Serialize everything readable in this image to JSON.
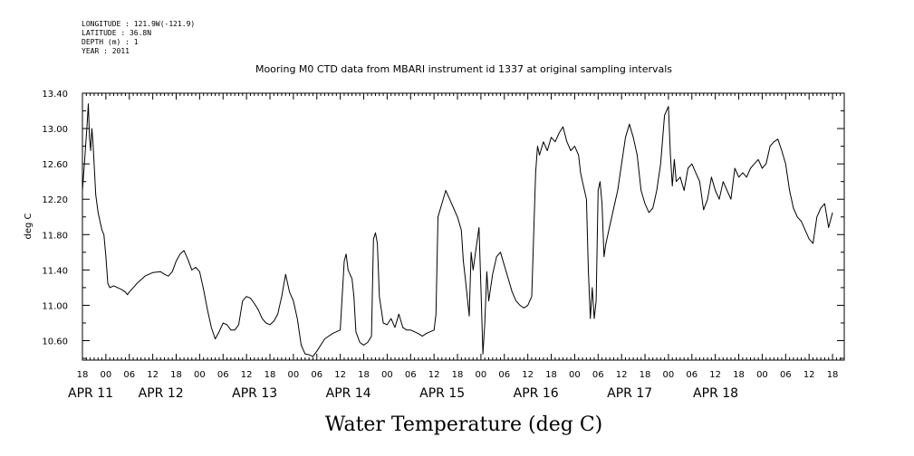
{
  "metadata": {
    "longitude": "LONGITUDE : 121.9W(-121.9)",
    "latitude": "LATITUDE : 36.8N",
    "depth": "DEPTH (m) : 1",
    "year": "YEAR : 2011"
  },
  "chart_data": {
    "type": "line",
    "title": "Mooring M0 CTD data from MBARI instrument id 1337 at original sampling intervals",
    "xlabel": "Water Temperature (deg C)",
    "ylabel": "deg C",
    "xlim": [
      -6,
      189
    ],
    "ylim": [
      10.38,
      13.4
    ],
    "y_tick_labels": [
      "13.40",
      "13.00",
      "12.60",
      "12.20",
      "11.80",
      "11.40",
      "11.00",
      "10.60"
    ],
    "y_tick_values": [
      13.4,
      13.0,
      12.6,
      12.2,
      11.8,
      11.4,
      11.0,
      10.6
    ],
    "x_hour_ticks": [
      {
        "t": -6,
        "label": "18"
      },
      {
        "t": 0,
        "label": "00"
      },
      {
        "t": 6,
        "label": "06"
      },
      {
        "t": 12,
        "label": "12"
      },
      {
        "t": 18,
        "label": "18"
      },
      {
        "t": 24,
        "label": "00"
      },
      {
        "t": 30,
        "label": "06"
      },
      {
        "t": 36,
        "label": "12"
      },
      {
        "t": 42,
        "label": "18"
      },
      {
        "t": 48,
        "label": "00"
      },
      {
        "t": 54,
        "label": "06"
      },
      {
        "t": 60,
        "label": "12"
      },
      {
        "t": 66,
        "label": "18"
      },
      {
        "t": 72,
        "label": "00"
      },
      {
        "t": 78,
        "label": "06"
      },
      {
        "t": 84,
        "label": "12"
      },
      {
        "t": 90,
        "label": "18"
      },
      {
        "t": 96,
        "label": "00"
      },
      {
        "t": 102,
        "label": "06"
      },
      {
        "t": 108,
        "label": "12"
      },
      {
        "t": 114,
        "label": "18"
      },
      {
        "t": 120,
        "label": "00"
      },
      {
        "t": 126,
        "label": "06"
      },
      {
        "t": 132,
        "label": "12"
      },
      {
        "t": 138,
        "label": "18"
      },
      {
        "t": 144,
        "label": "00"
      },
      {
        "t": 150,
        "label": "06"
      },
      {
        "t": 156,
        "label": "12"
      },
      {
        "t": 162,
        "label": "18"
      },
      {
        "t": 168,
        "label": "00"
      },
      {
        "t": 174,
        "label": "06"
      },
      {
        "t": 180,
        "label": "12"
      },
      {
        "t": 186,
        "label": "18"
      }
    ],
    "x_day_labels": [
      {
        "t": -6,
        "label": "APR 11"
      },
      {
        "t": 12,
        "label": "APR 12"
      },
      {
        "t": 36,
        "label": "APR 13"
      },
      {
        "t": 60,
        "label": "APR 14"
      },
      {
        "t": 84,
        "label": "APR 15"
      },
      {
        "t": 108,
        "label": "APR 16"
      },
      {
        "t": 132,
        "label": "APR 17"
      },
      {
        "t": 154,
        "label": "APR 18"
      }
    ],
    "series": [
      {
        "values": [
          [
            -6,
            12.3
          ],
          [
            -5.5,
            12.6
          ],
          [
            -5.2,
            12.8
          ],
          [
            -4.8,
            13.05
          ],
          [
            -4.5,
            13.28
          ],
          [
            -4.2,
            12.9
          ],
          [
            -3.9,
            12.75
          ],
          [
            -3.6,
            13.0
          ],
          [
            -3.3,
            12.85
          ],
          [
            -3.0,
            12.6
          ],
          [
            -2.6,
            12.25
          ],
          [
            -2.0,
            12.05
          ],
          [
            -1.5,
            11.95
          ],
          [
            -1.0,
            11.85
          ],
          [
            -0.5,
            11.8
          ],
          [
            0,
            11.55
          ],
          [
            0.5,
            11.25
          ],
          [
            1,
            11.2
          ],
          [
            2,
            11.22
          ],
          [
            3,
            11.2
          ],
          [
            4,
            11.18
          ],
          [
            5,
            11.15
          ],
          [
            5.5,
            11.12
          ],
          [
            6,
            11.15
          ],
          [
            7,
            11.2
          ],
          [
            8,
            11.25
          ],
          [
            10,
            11.33
          ],
          [
            12,
            11.37
          ],
          [
            14,
            11.38
          ],
          [
            15,
            11.35
          ],
          [
            16,
            11.33
          ],
          [
            17,
            11.38
          ],
          [
            18,
            11.5
          ],
          [
            19,
            11.58
          ],
          [
            20,
            11.62
          ],
          [
            21,
            11.52
          ],
          [
            22,
            11.4
          ],
          [
            23,
            11.43
          ],
          [
            24,
            11.38
          ],
          [
            25,
            11.18
          ],
          [
            26,
            10.95
          ],
          [
            27,
            10.75
          ],
          [
            28,
            10.62
          ],
          [
            29,
            10.7
          ],
          [
            30,
            10.8
          ],
          [
            31,
            10.78
          ],
          [
            32,
            10.72
          ],
          [
            33,
            10.72
          ],
          [
            34,
            10.78
          ],
          [
            35,
            11.05
          ],
          [
            36,
            11.1
          ],
          [
            37,
            11.08
          ],
          [
            38,
            11.02
          ],
          [
            39,
            10.95
          ],
          [
            40,
            10.85
          ],
          [
            41,
            10.8
          ],
          [
            42,
            10.78
          ],
          [
            43,
            10.82
          ],
          [
            44,
            10.9
          ],
          [
            45,
            11.1
          ],
          [
            46,
            11.35
          ],
          [
            47,
            11.15
          ],
          [
            48,
            11.05
          ],
          [
            49,
            10.85
          ],
          [
            50,
            10.55
          ],
          [
            51,
            10.45
          ],
          [
            52,
            10.44
          ],
          [
            53,
            10.42
          ],
          [
            54,
            10.48
          ],
          [
            55,
            10.55
          ],
          [
            56,
            10.62
          ],
          [
            57,
            10.65
          ],
          [
            58,
            10.68
          ],
          [
            59,
            10.7
          ],
          [
            60,
            10.72
          ],
          [
            61,
            11.5
          ],
          [
            61.5,
            11.58
          ],
          [
            62,
            11.4
          ],
          [
            63,
            11.3
          ],
          [
            63.5,
            11.1
          ],
          [
            64,
            10.7
          ],
          [
            65,
            10.58
          ],
          [
            66,
            10.55
          ],
          [
            67,
            10.58
          ],
          [
            68,
            10.65
          ],
          [
            68.5,
            11.75
          ],
          [
            69,
            11.82
          ],
          [
            69.5,
            11.7
          ],
          [
            70,
            11.1
          ],
          [
            71,
            10.8
          ],
          [
            72,
            10.78
          ],
          [
            73,
            10.85
          ],
          [
            74,
            10.75
          ],
          [
            75,
            10.9
          ],
          [
            76,
            10.75
          ],
          [
            77,
            10.72
          ],
          [
            78,
            10.72
          ],
          [
            79,
            10.7
          ],
          [
            80,
            10.68
          ],
          [
            81,
            10.65
          ],
          [
            82,
            10.68
          ],
          [
            83,
            10.7
          ],
          [
            84,
            10.72
          ],
          [
            84.5,
            10.9
          ],
          [
            85,
            12.0
          ],
          [
            86,
            12.15
          ],
          [
            87,
            12.3
          ],
          [
            88,
            12.2
          ],
          [
            89,
            12.1
          ],
          [
            90,
            12.0
          ],
          [
            91,
            11.85
          ],
          [
            91.5,
            11.5
          ],
          [
            92,
            11.3
          ],
          [
            93,
            10.88
          ],
          [
            93.5,
            11.6
          ],
          [
            94,
            11.4
          ],
          [
            95,
            11.72
          ],
          [
            95.5,
            11.88
          ],
          [
            96,
            11.2
          ],
          [
            96.5,
            10.45
          ],
          [
            97,
            10.8
          ],
          [
            97.5,
            11.38
          ],
          [
            98,
            11.05
          ],
          [
            99,
            11.35
          ],
          [
            100,
            11.55
          ],
          [
            101,
            11.6
          ],
          [
            102,
            11.45
          ],
          [
            103,
            11.3
          ],
          [
            104,
            11.15
          ],
          [
            105,
            11.05
          ],
          [
            106,
            11.0
          ],
          [
            107,
            10.97
          ],
          [
            108,
            11.0
          ],
          [
            109,
            11.1
          ],
          [
            110,
            12.5
          ],
          [
            110.5,
            12.8
          ],
          [
            111,
            12.7
          ],
          [
            112,
            12.85
          ],
          [
            113,
            12.75
          ],
          [
            114,
            12.9
          ],
          [
            115,
            12.85
          ],
          [
            116,
            12.95
          ],
          [
            117,
            13.02
          ],
          [
            118,
            12.85
          ],
          [
            119,
            12.75
          ],
          [
            120,
            12.8
          ],
          [
            121,
            12.7
          ],
          [
            121.5,
            12.5
          ],
          [
            122,
            12.4
          ],
          [
            123,
            12.2
          ],
          [
            123.5,
            11.4
          ],
          [
            124,
            10.85
          ],
          [
            124.5,
            11.2
          ],
          [
            125,
            10.85
          ],
          [
            125.5,
            11.05
          ],
          [
            126,
            12.3
          ],
          [
            126.5,
            12.4
          ],
          [
            127,
            12.15
          ],
          [
            127.5,
            11.55
          ],
          [
            128,
            11.7
          ],
          [
            129,
            11.9
          ],
          [
            130,
            12.1
          ],
          [
            131,
            12.3
          ],
          [
            132,
            12.6
          ],
          [
            133,
            12.9
          ],
          [
            134,
            13.05
          ],
          [
            135,
            12.9
          ],
          [
            136,
            12.7
          ],
          [
            137,
            12.3
          ],
          [
            138,
            12.15
          ],
          [
            139,
            12.05
          ],
          [
            140,
            12.1
          ],
          [
            141,
            12.3
          ],
          [
            142,
            12.6
          ],
          [
            143,
            13.15
          ],
          [
            143.5,
            13.2
          ],
          [
            144,
            13.25
          ],
          [
            144.5,
            12.7
          ],
          [
            145,
            12.35
          ],
          [
            145.5,
            12.65
          ],
          [
            146,
            12.4
          ],
          [
            147,
            12.45
          ],
          [
            148,
            12.3
          ],
          [
            149,
            12.55
          ],
          [
            150,
            12.6
          ],
          [
            151,
            12.5
          ],
          [
            152,
            12.4
          ],
          [
            153,
            12.08
          ],
          [
            154,
            12.2
          ],
          [
            155,
            12.45
          ],
          [
            156,
            12.3
          ],
          [
            157,
            12.2
          ],
          [
            158,
            12.4
          ],
          [
            159,
            12.3
          ],
          [
            160,
            12.2
          ],
          [
            161,
            12.55
          ],
          [
            162,
            12.45
          ],
          [
            163,
            12.5
          ],
          [
            164,
            12.45
          ],
          [
            165,
            12.55
          ],
          [
            166,
            12.6
          ],
          [
            167,
            12.65
          ],
          [
            168,
            12.55
          ],
          [
            169,
            12.6
          ],
          [
            170,
            12.8
          ],
          [
            171,
            12.85
          ],
          [
            172,
            12.88
          ],
          [
            173,
            12.75
          ],
          [
            174,
            12.6
          ],
          [
            175,
            12.3
          ],
          [
            176,
            12.1
          ],
          [
            177,
            12.0
          ],
          [
            178,
            11.95
          ],
          [
            179,
            11.85
          ],
          [
            180,
            11.75
          ],
          [
            181,
            11.7
          ],
          [
            182,
            12.0
          ],
          [
            183,
            12.1
          ],
          [
            184,
            12.15
          ],
          [
            185,
            11.88
          ],
          [
            186,
            12.05
          ]
        ]
      }
    ]
  }
}
